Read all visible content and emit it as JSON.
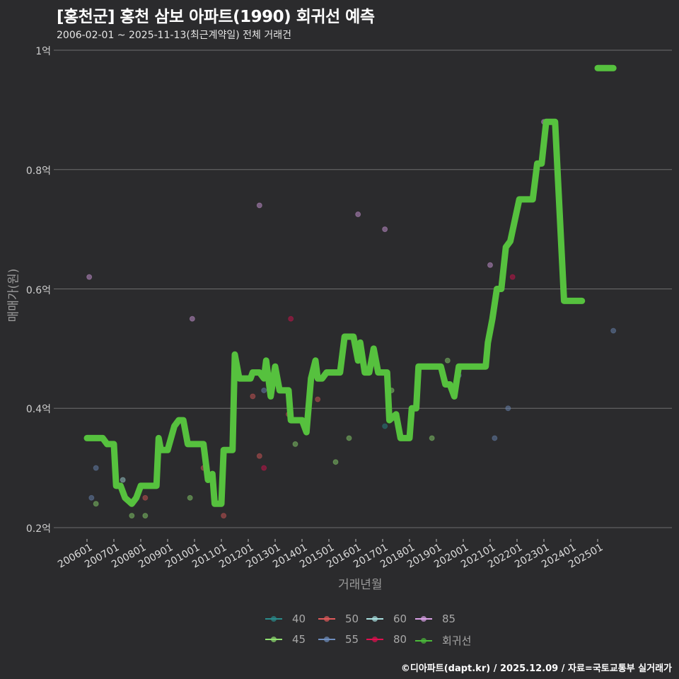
{
  "header": {
    "title": "[홍천군] 홍천 삼보 아파트(1990) 회귀선 예측",
    "subtitle": "2006-02-01 ~ 2025-11-13(최근계약일) 전체 거래건"
  },
  "axes": {
    "y_label": "매매가(원)",
    "x_label": "거래년월",
    "y_ticks": [
      "1억",
      "0.8억",
      "0.6억",
      "0.4억",
      "0.2억"
    ],
    "x_ticks": [
      "200601",
      "200701",
      "200801",
      "200901",
      "201001",
      "201101",
      "201201",
      "201301",
      "201401",
      "201501",
      "201601",
      "201701",
      "201801",
      "201901",
      "202001",
      "202101",
      "202201",
      "202301",
      "202401",
      "202501"
    ]
  },
  "legend": {
    "items": [
      {
        "label": "40",
        "color": "#2a8c8c"
      },
      {
        "label": "50",
        "color": "#e05a5a"
      },
      {
        "label": "60",
        "color": "#a8e0e0"
      },
      {
        "label": "85",
        "color": "#d9a0e6"
      },
      {
        "label": "45",
        "color": "#90e070"
      },
      {
        "label": "55",
        "color": "#6f8fbf"
      },
      {
        "label": "80",
        "color": "#e0104f"
      },
      {
        "label": "회귀선",
        "color": "#4cbb3a"
      }
    ]
  },
  "footer": {
    "credit": "©디아파트(dapt.kr) / 2025.12.09 / 자료=국토교통부 실거래가"
  },
  "colors": {
    "background": "#2b2b2d",
    "grid": "#6e6e6e",
    "regression": "#56c13e"
  },
  "chart_data": {
    "type": "line",
    "title": "[홍천군] 홍천 삼보 아파트(1990) 회귀선 예측",
    "subtitle": "2006-02-01 ~ 2025-11-13(최근계약일) 전체 거래건",
    "xlabel": "거래년월",
    "ylabel": "매매가(원)",
    "ylim": [
      0.2,
      1.0
    ],
    "y_unit": "억",
    "grid": true,
    "legend_position": "bottom",
    "series": [
      {
        "name": "회귀선",
        "type": "step-line",
        "points": [
          [
            "2006-01",
            0.35
          ],
          [
            "2006-08",
            0.35
          ],
          [
            "2006-10",
            0.34
          ],
          [
            "2007-01",
            0.34
          ],
          [
            "2007-02",
            0.27
          ],
          [
            "2007-04",
            0.27
          ],
          [
            "2007-06",
            0.25
          ],
          [
            "2007-09",
            0.24
          ],
          [
            "2007-11",
            0.25
          ],
          [
            "2008-01",
            0.27
          ],
          [
            "2008-07",
            0.27
          ],
          [
            "2008-08",
            0.27
          ],
          [
            "2008-09",
            0.35
          ],
          [
            "2008-10",
            0.33
          ],
          [
            "2009-01",
            0.33
          ],
          [
            "2009-04",
            0.37
          ],
          [
            "2009-06",
            0.38
          ],
          [
            "2009-08",
            0.38
          ],
          [
            "2009-10",
            0.34
          ],
          [
            "2010-05",
            0.34
          ],
          [
            "2010-07",
            0.28
          ],
          [
            "2010-09",
            0.29
          ],
          [
            "2010-10",
            0.24
          ],
          [
            "2011-01",
            0.24
          ],
          [
            "2011-02",
            0.33
          ],
          [
            "2011-06",
            0.33
          ],
          [
            "2011-07",
            0.49
          ],
          [
            "2011-09",
            0.45
          ],
          [
            "2012-02",
            0.45
          ],
          [
            "2012-03",
            0.46
          ],
          [
            "2012-06",
            0.46
          ],
          [
            "2012-08",
            0.45
          ],
          [
            "2012-09",
            0.48
          ],
          [
            "2012-11",
            0.42
          ],
          [
            "2013-01",
            0.47
          ],
          [
            "2013-03",
            0.43
          ],
          [
            "2013-07",
            0.43
          ],
          [
            "2013-08",
            0.38
          ],
          [
            "2013-11",
            0.38
          ],
          [
            "2014-01",
            0.38
          ],
          [
            "2014-03",
            0.36
          ],
          [
            "2014-05",
            0.45
          ],
          [
            "2014-07",
            0.48
          ],
          [
            "2014-08",
            0.45
          ],
          [
            "2014-10",
            0.45
          ],
          [
            "2014-12",
            0.46
          ],
          [
            "2015-06",
            0.46
          ],
          [
            "2015-08",
            0.52
          ],
          [
            "2015-12",
            0.52
          ],
          [
            "2016-02",
            0.48
          ],
          [
            "2016-03",
            0.51
          ],
          [
            "2016-05",
            0.46
          ],
          [
            "2016-07",
            0.46
          ],
          [
            "2016-09",
            0.5
          ],
          [
            "2016-11",
            0.46
          ],
          [
            "2017-03",
            0.46
          ],
          [
            "2017-04",
            0.38
          ],
          [
            "2017-07",
            0.39
          ],
          [
            "2017-09",
            0.35
          ],
          [
            "2018-01",
            0.35
          ],
          [
            "2018-02",
            0.4
          ],
          [
            "2018-04",
            0.4
          ],
          [
            "2018-05",
            0.47
          ],
          [
            "2019-03",
            0.47
          ],
          [
            "2019-05",
            0.44
          ],
          [
            "2019-07",
            0.44
          ],
          [
            "2019-09",
            0.42
          ],
          [
            "2019-11",
            0.47
          ],
          [
            "2020-11",
            0.47
          ],
          [
            "2020-12",
            0.51
          ],
          [
            "2021-02",
            0.55
          ],
          [
            "2021-04",
            0.6
          ],
          [
            "2021-06",
            0.6
          ],
          [
            "2021-08",
            0.67
          ],
          [
            "2021-10",
            0.68
          ],
          [
            "2022-02",
            0.75
          ],
          [
            "2022-08",
            0.75
          ],
          [
            "2022-10",
            0.81
          ],
          [
            "2022-12",
            0.81
          ],
          [
            "2023-02",
            0.88
          ],
          [
            "2023-06",
            0.88
          ],
          [
            "2023-10",
            0.58
          ],
          [
            "2024-06",
            0.58
          ],
          [
            "2025-01",
            0.97
          ],
          [
            "2025-08",
            0.97
          ]
        ]
      },
      {
        "name": "85",
        "type": "scatter",
        "points": [
          [
            "2006-02",
            0.62
          ],
          [
            "2009-12",
            0.55
          ],
          [
            "2012-06",
            0.74
          ],
          [
            "2016-02",
            0.725
          ],
          [
            "2017-02",
            0.7
          ],
          [
            "2021-01",
            0.64
          ],
          [
            "2023-01",
            0.88
          ]
        ]
      },
      {
        "name": "80",
        "type": "scatter",
        "points": [
          [
            "2012-08",
            0.3
          ],
          [
            "2013-08",
            0.55
          ],
          [
            "2021-11",
            0.62
          ]
        ]
      },
      {
        "name": "50",
        "type": "scatter",
        "points": [
          [
            "2008-03",
            0.25
          ],
          [
            "2010-05",
            0.3
          ],
          [
            "2011-02",
            0.22
          ],
          [
            "2012-03",
            0.42
          ],
          [
            "2012-06",
            0.32
          ],
          [
            "2013-07",
            0.39
          ],
          [
            "2014-08",
            0.415
          ]
        ]
      },
      {
        "name": "55",
        "type": "scatter",
        "points": [
          [
            "2006-05",
            0.3
          ],
          [
            "2006-03",
            0.25
          ],
          [
            "2012-08",
            0.43
          ],
          [
            "2019-11",
            0.455
          ],
          [
            "2021-03",
            0.35
          ],
          [
            "2021-09",
            0.4
          ],
          [
            "2025-08",
            0.53
          ]
        ]
      },
      {
        "name": "45",
        "type": "scatter",
        "points": [
          [
            "2006-05",
            0.24
          ],
          [
            "2007-09",
            0.22
          ],
          [
            "2008-03",
            0.22
          ],
          [
            "2009-11",
            0.25
          ],
          [
            "2013-10",
            0.34
          ],
          [
            "2015-04",
            0.31
          ],
          [
            "2015-10",
            0.35
          ],
          [
            "2017-05",
            0.43
          ],
          [
            "2018-11",
            0.35
          ],
          [
            "2019-06",
            0.48
          ]
        ]
      },
      {
        "name": "60",
        "type": "scatter",
        "points": [
          [
            "2007-05",
            0.28
          ]
        ]
      },
      {
        "name": "40",
        "type": "scatter",
        "points": [
          [
            "2017-02",
            0.37
          ]
        ]
      }
    ]
  }
}
